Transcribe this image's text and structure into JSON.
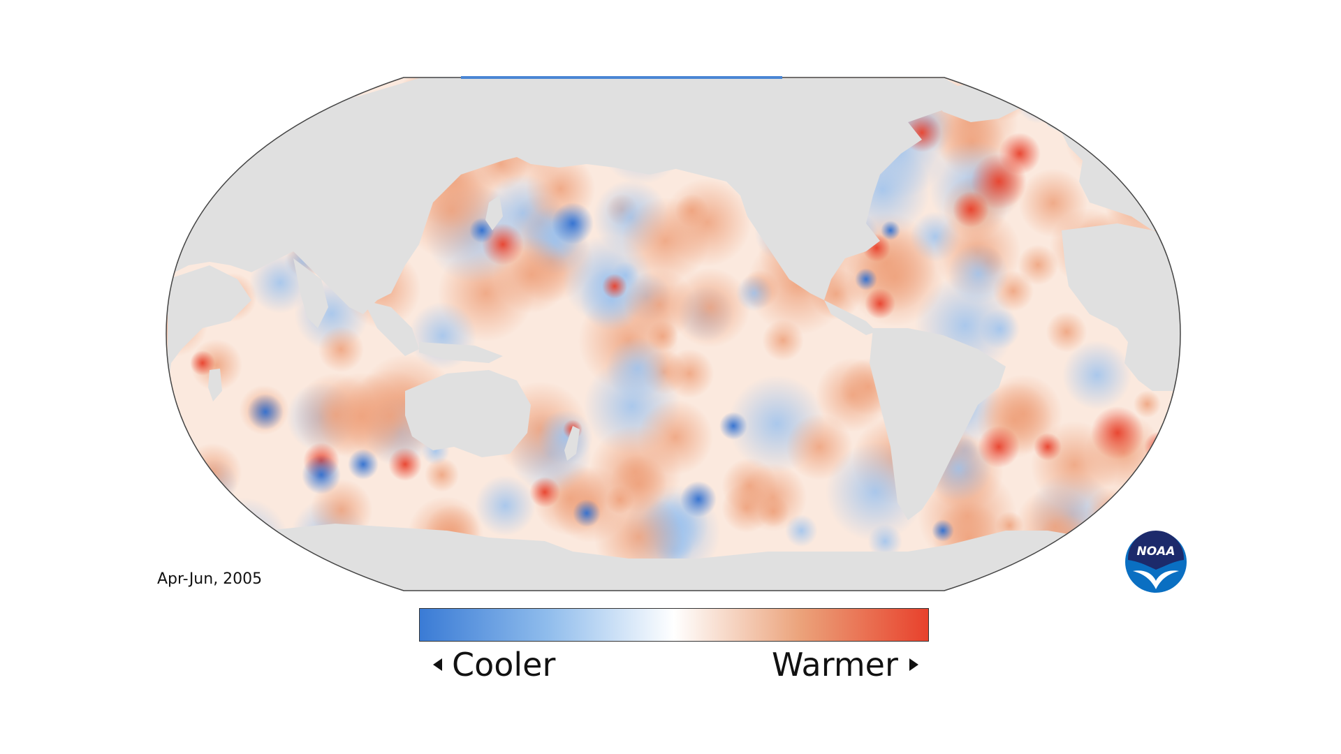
{
  "period_label": "Apr-Jun, 2005",
  "legend": {
    "cool_label": "Cooler",
    "warm_label": "Warmer",
    "cool_color": "#3a7bd5",
    "neutral_color": "#ffffff",
    "warm_color": "#e8412c"
  },
  "land_color": "#e0e0e0",
  "logo": {
    "text": "NOAA",
    "primary_color": "#0a6fc2",
    "dark_color": "#1c2a6b"
  }
}
